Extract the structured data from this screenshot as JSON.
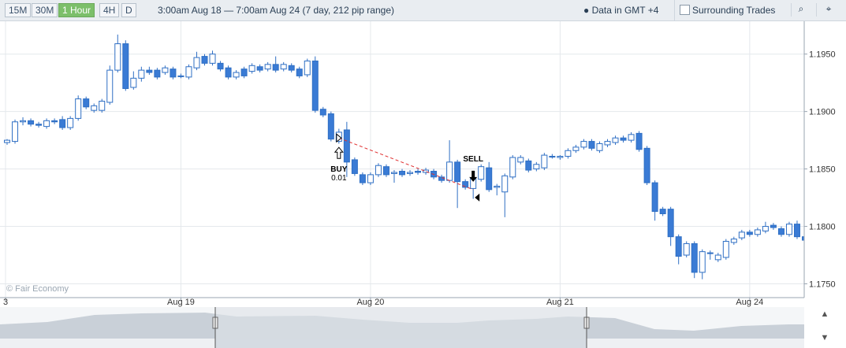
{
  "toolbar": {
    "buttons": [
      "15M",
      "30M",
      "1 Hour",
      "4H",
      "D"
    ],
    "active": 2,
    "range": "3:00am Aug 18 — 7:00am Aug 24 (7 day, 212 pip range)",
    "timezone": "Data in GMT +4",
    "checkbox": "Surrounding Trades"
  },
  "chart_data": {
    "type": "candlestick",
    "copyright": "© Fair Economy",
    "x": [
      0,
      1,
      2,
      3,
      4,
      5,
      6,
      7,
      8,
      9,
      10,
      11,
      12,
      13,
      14,
      15,
      16,
      17,
      18,
      19,
      20,
      21,
      22,
      23,
      24,
      25,
      26,
      27,
      28,
      29,
      30,
      31,
      32,
      33,
      34,
      35,
      36,
      37,
      38,
      39,
      40,
      41,
      42,
      43,
      44,
      45,
      46,
      47,
      48,
      49,
      50,
      51,
      52,
      53,
      54,
      55,
      56,
      57,
      58,
      59,
      60,
      61,
      62,
      63,
      64,
      65,
      66,
      67,
      68,
      69,
      70,
      71,
      72,
      73,
      74,
      75,
      76,
      77,
      78,
      79,
      80,
      81,
      82,
      83,
      84,
      85,
      86,
      87,
      88,
      89,
      90,
      91,
      92,
      93,
      94,
      95,
      96,
      97,
      98,
      99,
      100,
      101
    ],
    "open": [
      1.1873,
      1.1874,
      1.1891,
      1.1892,
      1.1889,
      1.1887,
      1.1892,
      1.1893,
      1.1886,
      1.1894,
      1.1911,
      1.1901,
      1.1901,
      1.1908,
      1.1936,
      1.1959,
      1.1921,
      1.1929,
      1.1936,
      1.1936,
      1.1934,
      1.1937,
      1.1931,
      1.193,
      1.1938,
      1.1948,
      1.1942,
      1.1942,
      1.1938,
      1.193,
      1.1937,
      1.1935,
      1.1939,
      1.1937,
      1.1941,
      1.1937,
      1.194,
      1.1937,
      1.1932,
      1.1944,
      1.1902,
      1.1898,
      1.1874,
      1.1884,
      1.1858,
      1.1845,
      1.1838,
      1.1845,
      1.1852,
      1.1846,
      1.1848,
      1.1846,
      1.1848,
      1.1847,
      1.1848,
      1.1843,
      1.184,
      1.1856,
      1.1839,
      1.1833,
      1.1841,
      1.1851,
      1.1834,
      1.183,
      1.1843,
      1.1856,
      1.1857,
      1.185,
      1.1851,
      1.1861,
      1.186,
      1.1861,
      1.1866,
      1.1869,
      1.1874,
      1.1866,
      1.1871,
      1.1873,
      1.1877,
      1.1875,
      1.1881,
      1.1868,
      1.1838,
      1.1815,
      1.1815,
      1.1791,
      1.1775,
      1.1785,
      1.176,
      1.1777,
      1.1771,
      1.1773,
      1.1786,
      1.179,
      1.1795,
      1.1793,
      1.1796,
      1.1801,
      1.1798,
      1.1793,
      1.1802,
      1.1791
    ],
    "high": [
      1.1876,
      1.1893,
      1.1895,
      1.1894,
      1.1891,
      1.1894,
      1.1894,
      1.1896,
      1.1896,
      1.1914,
      1.1913,
      1.1907,
      1.1911,
      1.194,
      1.1967,
      1.1962,
      1.1935,
      1.1939,
      1.1939,
      1.1938,
      1.194,
      1.1939,
      1.1933,
      1.1941,
      1.1952,
      1.195,
      1.1953,
      1.1944,
      1.194,
      1.1936,
      1.1939,
      1.1942,
      1.1941,
      1.1943,
      1.1948,
      1.1943,
      1.1942,
      1.1939,
      1.1946,
      1.1948,
      1.1904,
      1.19,
      1.1885,
      1.1891,
      1.186,
      1.1847,
      1.1847,
      1.1855,
      1.1854,
      1.1849,
      1.185,
      1.1849,
      1.185,
      1.1851,
      1.185,
      1.1845,
      1.1875,
      1.1858,
      1.1841,
      1.1844,
      1.1854,
      1.1856,
      1.1837,
      1.1846,
      1.1862,
      1.1862,
      1.1859,
      1.1856,
      1.1864,
      1.1863,
      1.1862,
      1.1868,
      1.1871,
      1.1876,
      1.1876,
      1.1874,
      1.1876,
      1.1879,
      1.1879,
      1.1882,
      1.1883,
      1.187,
      1.184,
      1.1817,
      1.1817,
      1.1793,
      1.1787,
      1.1787,
      1.178,
      1.1779,
      1.1777,
      1.1789,
      1.1791,
      1.1797,
      1.1797,
      1.1799,
      1.1804,
      1.1803,
      1.18,
      1.1804,
      1.1805,
      1.1793
    ],
    "low": [
      1.1871,
      1.1872,
      1.1888,
      1.1887,
      1.1886,
      1.1885,
      1.1889,
      1.1884,
      1.1884,
      1.1892,
      1.1902,
      1.1899,
      1.1899,
      1.1906,
      1.1934,
      1.1918,
      1.1919,
      1.1926,
      1.1932,
      1.1928,
      1.1932,
      1.1928,
      1.1929,
      1.1928,
      1.1936,
      1.194,
      1.194,
      1.1935,
      1.1928,
      1.1928,
      1.1929,
      1.1933,
      1.1934,
      1.1935,
      1.1934,
      1.1935,
      1.1934,
      1.1929,
      1.193,
      1.1899,
      1.1895,
      1.1874,
      1.1872,
      1.1843,
      1.1844,
      1.1836,
      1.1836,
      1.1843,
      1.1843,
      1.1838,
      1.1843,
      1.1844,
      1.1845,
      1.1845,
      1.1841,
      1.1838,
      1.1838,
      1.1816,
      1.1832,
      1.1824,
      1.1839,
      1.183,
      1.1827,
      1.1808,
      1.1841,
      1.1854,
      1.1847,
      1.1848,
      1.1849,
      1.1859,
      1.1858,
      1.1859,
      1.1864,
      1.1867,
      1.1866,
      1.1864,
      1.1869,
      1.1871,
      1.1873,
      1.1873,
      1.1865,
      1.1836,
      1.1805,
      1.1809,
      1.1783,
      1.1767,
      1.1773,
      1.1755,
      1.1754,
      1.1771,
      1.1769,
      1.1771,
      1.1784,
      1.1788,
      1.1791,
      1.1791,
      1.1794,
      1.1797,
      1.1791,
      1.1791,
      1.1789,
      1.1785
    ],
    "close": [
      1.1875,
      1.1891,
      1.1892,
      1.1889,
      1.1888,
      1.1892,
      1.1891,
      1.1886,
      1.1894,
      1.1911,
      1.1904,
      1.1905,
      1.1909,
      1.1936,
      1.1959,
      1.192,
      1.1929,
      1.1936,
      1.1934,
      1.193,
      1.1938,
      1.193,
      1.1931,
      1.1939,
      1.1947,
      1.1942,
      1.195,
      1.1937,
      1.193,
      1.1934,
      1.1931,
      1.194,
      1.1936,
      1.1941,
      1.1936,
      1.1941,
      1.1936,
      1.1931,
      1.1944,
      1.1901,
      1.1897,
      1.1876,
      1.1882,
      1.1856,
      1.1846,
      1.1838,
      1.1845,
      1.1853,
      1.1845,
      1.1847,
      1.1845,
      1.1847,
      1.1847,
      1.1849,
      1.1843,
      1.184,
      1.1856,
      1.1839,
      1.1834,
      1.1842,
      1.1852,
      1.1832,
      1.1835,
      1.1844,
      1.186,
      1.186,
      1.1849,
      1.1854,
      1.1862,
      1.1861,
      1.1861,
      1.1866,
      1.1869,
      1.1874,
      1.1868,
      1.1872,
      1.1874,
      1.1877,
      1.1875,
      1.188,
      1.1867,
      1.1838,
      1.1813,
      1.1811,
      1.1791,
      1.1774,
      1.1785,
      1.176,
      1.1778,
      1.1777,
      1.1775,
      1.1787,
      1.1789,
      1.1795,
      1.1793,
      1.1797,
      1.18,
      1.1799,
      1.1793,
      1.1802,
      1.1791,
      1.1788
    ],
    "up_color": "#ffffff",
    "down_color": "#3a7bd5",
    "border_color": "#2f6fc4",
    "xlim": [
      -0.4,
      100.9
    ],
    "xticks": [
      {
        "value": -0.2,
        "label": "3"
      },
      {
        "value": 22,
        "label": "Aug 19"
      },
      {
        "value": 46,
        "label": "Aug 20"
      },
      {
        "value": 70,
        "label": "Aug 21"
      },
      {
        "value": 94,
        "label": "Aug 24"
      }
    ],
    "ylim": [
      1.1738,
      1.1982
    ],
    "yticks": [
      {
        "value": 1.175,
        "label": "1.1750"
      },
      {
        "value": 1.18,
        "label": "1.1800"
      },
      {
        "value": 1.185,
        "label": "1.1850"
      },
      {
        "value": 1.19,
        "label": "1.1900"
      },
      {
        "value": 1.195,
        "label": "1.1950"
      }
    ],
    "grid": true,
    "trades": [
      {
        "side": "BUY",
        "size": "0.01",
        "x": 42,
        "price": 1.1877
      },
      {
        "side": "SELL",
        "x": 59,
        "price": 1.1832
      }
    ]
  }
}
